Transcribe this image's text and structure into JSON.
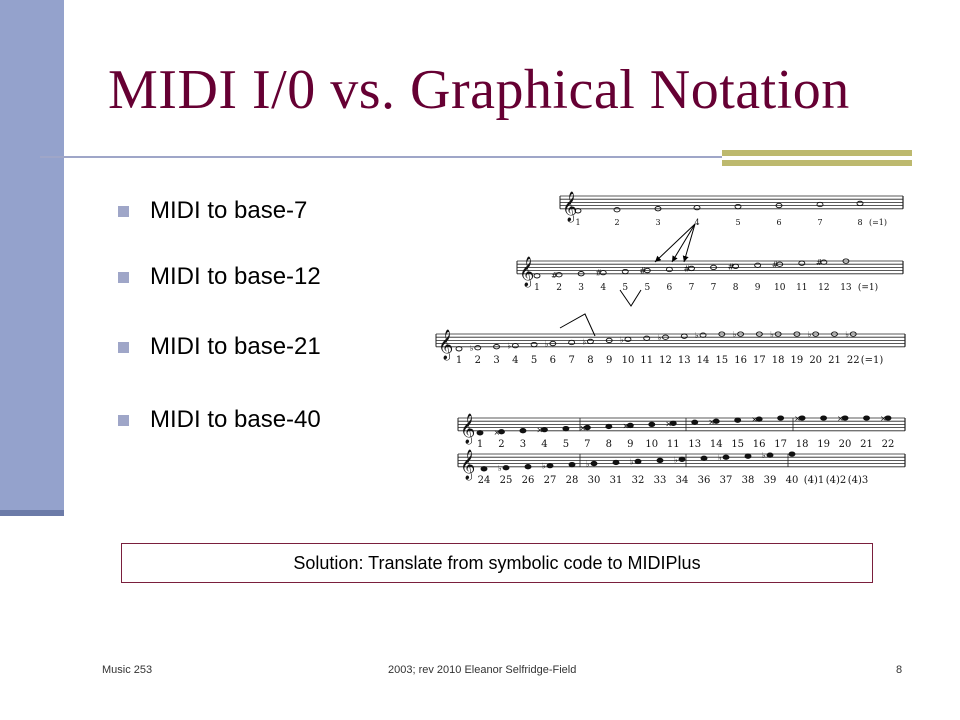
{
  "slide": {
    "title": "MIDI I/0 vs. Graphical Notation",
    "bullets": [
      {
        "label": "MIDI to base-7"
      },
      {
        "label": "MIDI to base-12"
      },
      {
        "label": "MIDI to base-21"
      },
      {
        "label": "MIDI to base-40"
      }
    ],
    "solution_text": "Solution: Translate from symbolic code to MIDIPlus"
  },
  "staves": {
    "base7_numbers": [
      "1",
      "2",
      "3",
      "4",
      "5",
      "6",
      "7",
      "8",
      "(=1)"
    ],
    "base12_numbers": [
      "1",
      "2",
      "3",
      "4",
      "5",
      "5",
      "6",
      "7",
      "7",
      "8",
      "9",
      "10",
      "11",
      "12",
      "13",
      "(=1)"
    ],
    "base21_numbers": [
      "1",
      "2",
      "3",
      "4",
      "5",
      "6",
      "7",
      "8",
      "9",
      "10",
      "11",
      "12",
      "13",
      "14",
      "15",
      "16",
      "17",
      "18",
      "19",
      "20",
      "21",
      "22",
      "(=1)"
    ],
    "base40_row1_numbers": [
      "1",
      "2",
      "3",
      "4",
      "5",
      "7",
      "8",
      "9",
      "10",
      "11",
      "13",
      "14",
      "15",
      "16",
      "17",
      "18",
      "19",
      "20",
      "21",
      "22"
    ],
    "base40_row2_numbers": [
      "24",
      "25",
      "26",
      "27",
      "28",
      "30",
      "31",
      "32",
      "33",
      "34",
      "36",
      "37",
      "38",
      "39",
      "40",
      "(4)1",
      "(4)2",
      "(4)3"
    ]
  },
  "footer": {
    "left": "Music 253",
    "center": "2003; rev 2010 Eleanor Selfridge-Field",
    "page_number": "8"
  },
  "colors": {
    "title": "#660033",
    "left_bar": "#94A2CC",
    "rule": "#9FA6C8",
    "accent": "#BDB96E",
    "box_border": "#7A1F3D"
  }
}
